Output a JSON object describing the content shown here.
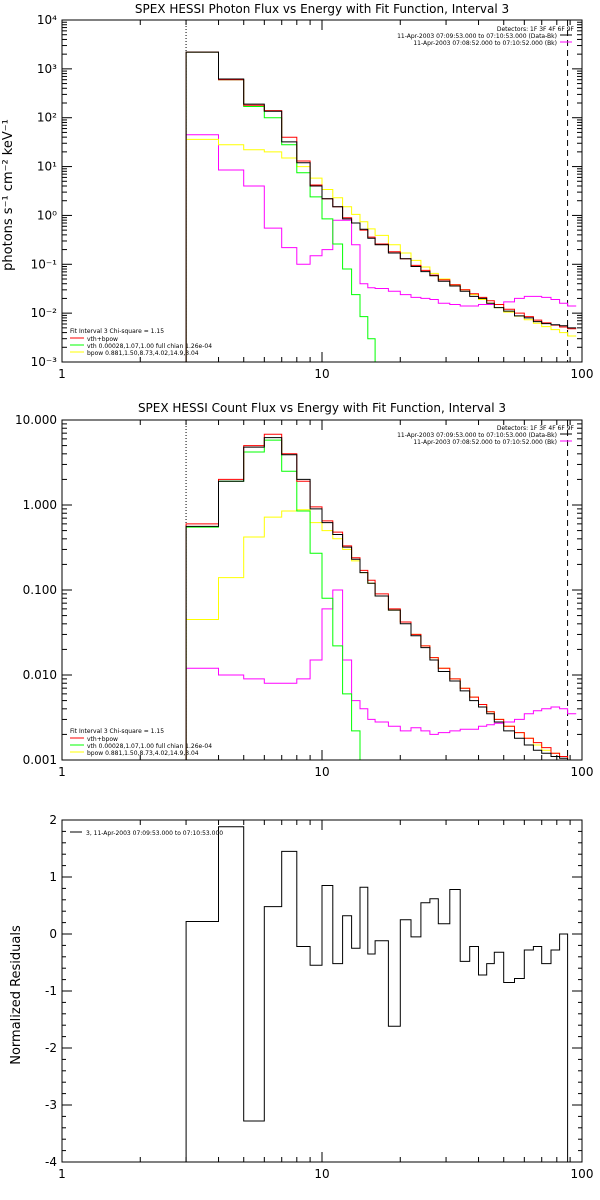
{
  "colors": {
    "background": "#ffffff",
    "axes": "#000000",
    "data": "#000000",
    "background_counts": "#ff00ff",
    "total_fit": "#ff0000",
    "vth": "#00ff00",
    "bpow": "#ffff00"
  },
  "chart_data": [
    {
      "type": "line",
      "step": true,
      "title": "SPEX HESSI Photon Flux vs Energy with Fit Function, Interval 3",
      "xlabel": "",
      "ylabel": "photons s⁻¹ cm⁻² keV⁻¹",
      "xscale": "log",
      "yscale": "log",
      "xlim": [
        1,
        100
      ],
      "ylim": [
        0.001,
        10000
      ],
      "xticks": [
        1,
        10,
        100
      ],
      "xtick_labels": [
        "1",
        "10",
        "100"
      ],
      "yticks": [
        0.001,
        0.01,
        0.1,
        1,
        10,
        100,
        1000,
        10000
      ],
      "ytick_labels": [
        "10⁻³",
        "10⁻²",
        "10⁻¹",
        "10⁰",
        "10¹",
        "10²",
        "10³",
        "10⁴"
      ],
      "vlines": [
        {
          "x": 3,
          "style": "dotted"
        },
        {
          "x": 88,
          "style": "dashed"
        }
      ],
      "info": {
        "detectors": "Detectors: 1F 3F 4F 6F 9F",
        "data_interval": "11-Apr-2003 07:09:53.000 to 07:10:53.000 (Data-Bk)",
        "bk_interval": "11-Apr-2003 07:08:52.000 to 07:10:52.000 (Bk)"
      },
      "fit_legend": {
        "header": "Fit Interval 3   Chi-square = 1.15",
        "items": [
          {
            "label": "vth+bpow",
            "series": "total"
          },
          {
            "label": "vth 0.00028,1.07,1.00  full chian 1.26e-04",
            "series": "vth"
          },
          {
            "label": "bpow 0.881,1.50,8.73,4.02,14.9,3.04",
            "series": "bpow"
          }
        ]
      },
      "edges": [
        3,
        4,
        5,
        6,
        7,
        8,
        9,
        10,
        11,
        12,
        13,
        14,
        15,
        16,
        18,
        20,
        22,
        24,
        26,
        28,
        31,
        34,
        37,
        40,
        43,
        46,
        50,
        55,
        60,
        65,
        70,
        76,
        82,
        88,
        95
      ],
      "series": [
        {
          "key": "total",
          "values": [
            2200,
            600,
            180,
            140,
            40,
            13,
            4.2,
            2.2,
            1.5,
            0.9,
            0.7,
            0.5,
            0.36,
            0.26,
            0.18,
            0.13,
            0.095,
            0.075,
            0.06,
            0.048,
            0.038,
            0.03,
            0.025,
            0.021,
            0.018,
            0.015,
            0.012,
            0.01,
            0.0085,
            0.0072,
            0.0063,
            0.0057,
            0.0052,
            0.0048
          ]
        },
        {
          "key": "data",
          "values": [
            2200,
            620,
            190,
            135,
            32,
            12,
            4.0,
            2.2,
            1.5,
            0.85,
            0.7,
            0.52,
            0.34,
            0.25,
            0.17,
            0.13,
            0.09,
            0.071,
            0.058,
            0.045,
            0.036,
            0.028,
            0.022,
            0.02,
            0.016,
            0.013,
            0.011,
            0.0088,
            0.008,
            0.0067,
            0.0061,
            0.0058,
            0.0055,
            0.005
          ]
        },
        {
          "key": "vth",
          "values": [
            2200,
            600,
            170,
            100,
            28,
            7.5,
            2.4,
            0.85,
            0.26,
            0.08,
            0.024,
            0.0085,
            0.003,
            0.001
          ]
        },
        {
          "key": "bpow",
          "values": [
            36,
            28,
            22,
            20,
            15,
            10,
            5.8,
            3.4,
            2.3,
            1.5,
            1.05,
            0.74,
            0.53,
            0.39,
            0.25,
            0.17,
            0.12,
            0.088,
            0.065,
            0.05,
            0.038,
            0.03,
            0.024,
            0.019,
            0.016,
            0.013,
            0.0105,
            0.0087,
            0.0073,
            0.0062,
            0.0053,
            0.0046,
            0.004,
            0.0034
          ]
        },
        {
          "key": "bk",
          "values": [
            45,
            8.5,
            4.0,
            0.55,
            0.22,
            0.1,
            0.15,
            0.2,
            0.8,
            0.8,
            0.25,
            0.04,
            0.033,
            0.032,
            0.028,
            0.024,
            0.021,
            0.02,
            0.019,
            0.016,
            0.015,
            0.014,
            0.014,
            0.015,
            0.015,
            0.015,
            0.017,
            0.02,
            0.022,
            0.022,
            0.021,
            0.019,
            0.016,
            0.014
          ]
        }
      ]
    },
    {
      "type": "line",
      "step": true,
      "title": "SPEX HESSI Count Flux vs Energy with Fit Function, Interval 3",
      "xlabel": "",
      "ylabel": "",
      "xscale": "log",
      "yscale": "log",
      "xlim": [
        1,
        100
      ],
      "ylim": [
        0.001,
        10
      ],
      "xticks": [
        1,
        10,
        100
      ],
      "xtick_labels": [
        "1",
        "10",
        "100"
      ],
      "yticks": [
        0.001,
        0.01,
        0.1,
        1,
        10
      ],
      "ytick_labels": [
        "0.001",
        "0.010",
        "0.100",
        "1.000",
        "10.000"
      ],
      "vlines": [
        {
          "x": 3,
          "style": "dotted"
        },
        {
          "x": 88,
          "style": "dashed"
        }
      ],
      "info": {
        "detectors": "Detectors: 1F 3F 4F 6F 9F",
        "data_interval": "11-Apr-2003 07:09:53.000 to 07:10:53.000 (Data-Bk)",
        "bk_interval": "11-Apr-2003 07:08:52.000 to 07:10:52.000 (Bk)"
      },
      "fit_legend": {
        "header": "Fit Interval 3   Chi-square = 1.15",
        "items": [
          {
            "label": "vth+bpow",
            "series": "total"
          },
          {
            "label": "vth 0.00028,1.07,1.00  full chian 1.26e-04",
            "series": "vth"
          },
          {
            "label": "bpow 0.881,1.50,8.73,4.02,14.9,3.04",
            "series": "bpow"
          }
        ]
      },
      "edges": [
        3,
        4,
        5,
        6,
        7,
        8,
        9,
        10,
        11,
        12,
        13,
        14,
        15,
        16,
        18,
        20,
        22,
        24,
        26,
        28,
        31,
        34,
        37,
        40,
        43,
        46,
        50,
        55,
        60,
        65,
        70,
        76,
        82,
        88,
        95
      ],
      "series": [
        {
          "key": "total",
          "values": [
            0.6,
            2.0,
            5.0,
            6.8,
            4.0,
            1.9,
            0.95,
            0.65,
            0.48,
            0.33,
            0.24,
            0.17,
            0.13,
            0.09,
            0.06,
            0.042,
            0.03,
            0.022,
            0.016,
            0.012,
            0.009,
            0.007,
            0.0055,
            0.0045,
            0.0037,
            0.003,
            0.0025,
            0.0021,
            0.0018,
            0.0016,
            0.0014,
            0.0012,
            0.0011,
            0.001
          ]
        },
        {
          "key": "data",
          "values": [
            0.56,
            1.9,
            4.8,
            6.2,
            3.9,
            2.0,
            0.9,
            0.62,
            0.45,
            0.32,
            0.23,
            0.16,
            0.12,
            0.085,
            0.058,
            0.04,
            0.029,
            0.021,
            0.015,
            0.011,
            0.0085,
            0.0065,
            0.005,
            0.0042,
            0.0035,
            0.0028,
            0.0022,
            0.0018,
            0.0015,
            0.0013,
            0.0012,
            0.0011,
            0.00105,
            0.001
          ]
        },
        {
          "key": "vth",
          "values": [
            0.55,
            1.9,
            4.2,
            5.8,
            2.5,
            0.85,
            0.27,
            0.08,
            0.022,
            0.006,
            0.0022,
            0.0008
          ]
        },
        {
          "key": "bpow",
          "values": [
            0.045,
            0.14,
            0.42,
            0.72,
            0.85,
            0.88,
            0.62,
            0.5,
            0.4,
            0.3,
            0.22,
            0.16,
            0.12,
            0.085,
            0.058,
            0.042,
            0.03,
            0.022,
            0.016,
            0.012,
            0.009,
            0.007,
            0.0055,
            0.0045,
            0.0037,
            0.003,
            0.0025,
            0.0021,
            0.0018,
            0.0015,
            0.0013,
            0.0012,
            0.0011,
            0.001
          ]
        },
        {
          "key": "bk",
          "values": [
            0.012,
            0.01,
            0.009,
            0.008,
            0.008,
            0.009,
            0.015,
            0.06,
            0.1,
            0.015,
            0.005,
            0.004,
            0.003,
            0.0028,
            0.0025,
            0.0022,
            0.0024,
            0.0022,
            0.002,
            0.0021,
            0.0022,
            0.0023,
            0.0023,
            0.0025,
            0.0026,
            0.0027,
            0.0028,
            0.003,
            0.0035,
            0.0038,
            0.004,
            0.0042,
            0.004,
            0.0035
          ]
        }
      ]
    },
    {
      "type": "line",
      "step": true,
      "title": "",
      "xlabel": "",
      "ylabel": "Normalized Residuals",
      "xscale": "log",
      "yscale": "linear",
      "xlim": [
        1,
        100
      ],
      "ylim": [
        -4,
        2
      ],
      "xticks": [
        1,
        10,
        100
      ],
      "xtick_labels": [
        "1",
        "10",
        "100"
      ],
      "yticks": [
        -4,
        -3,
        -2,
        -1,
        0,
        1,
        2
      ],
      "ytick_labels": [
        "-4",
        "-3",
        "-2",
        "-1",
        "0",
        "1",
        "2"
      ],
      "vlines": [],
      "legend": "3, 11-Apr-2003 07:09:53.000 to 07:10:53.000",
      "edges": [
        3,
        4,
        5,
        6,
        7,
        8,
        9,
        10,
        11,
        12,
        13,
        14,
        15,
        16,
        18,
        20,
        22,
        24,
        26,
        28,
        31,
        34,
        37,
        40,
        43,
        46,
        50,
        55,
        60,
        65,
        70,
        76,
        82,
        88,
        95
      ],
      "series": [
        {
          "key": "residuals",
          "values": [
            0.22,
            1.88,
            -3.28,
            0.48,
            1.45,
            -0.22,
            -0.55,
            0.85,
            -0.52,
            0.32,
            -0.25,
            0.82,
            -0.35,
            -0.12,
            -1.62,
            0.25,
            -0.05,
            0.55,
            0.62,
            0.18,
            0.78,
            -0.48,
            -0.22,
            -0.72,
            -0.52,
            -0.32,
            -0.85,
            -0.78,
            -0.28,
            -0.22,
            -0.52,
            -0.28,
            0.0,
            -4.0
          ]
        }
      ]
    }
  ]
}
